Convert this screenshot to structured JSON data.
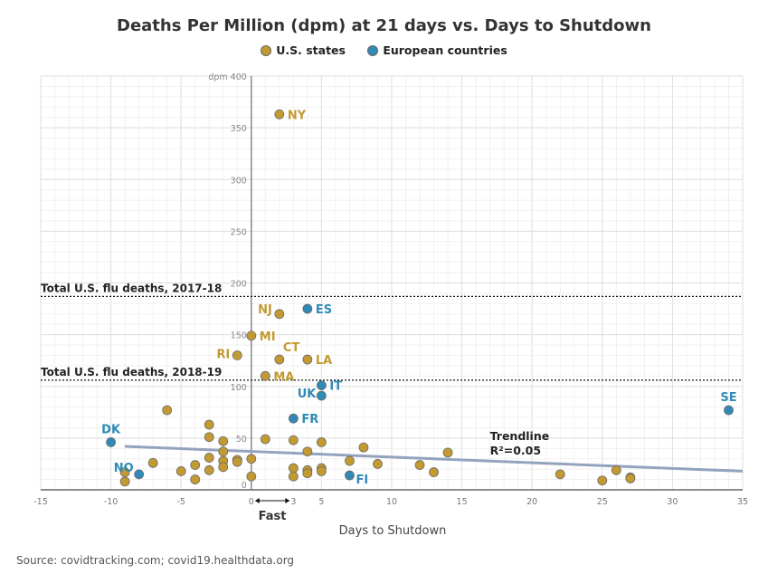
{
  "chart_data": {
    "type": "scatter",
    "title": "Deaths Per Million (dpm) at 21 days vs. Days to Shutdown",
    "xlabel": "Days to Shutdown",
    "ylabel": "dpm",
    "xlim": [
      -15,
      35
    ],
    "ylim": [
      0,
      400
    ],
    "xticks": [
      "-15",
      "-10",
      "-5",
      "0",
      "3",
      "5",
      "10",
      "15",
      "20",
      "25",
      "30",
      "35"
    ],
    "yticks": [
      "0",
      "50",
      "100",
      "150",
      "200",
      "250",
      "300",
      "350",
      "dpm 400"
    ],
    "grid": true,
    "legend_position": "top-center",
    "fast_label": "Fast",
    "colors": {
      "us": "#c39a32",
      "europe": "#2f8ab5",
      "trend": "#94a3bd"
    },
    "series": [
      {
        "name": "U.S. states",
        "points": [
          {
            "x": 2,
            "y": 363,
            "label": "NY"
          },
          {
            "x": 2,
            "y": 170,
            "label": "NJ"
          },
          {
            "x": 0,
            "y": 149,
            "label": "MI"
          },
          {
            "x": -1,
            "y": 130,
            "label": "RI"
          },
          {
            "x": 2,
            "y": 126,
            "label": "CT"
          },
          {
            "x": 4,
            "y": 126,
            "label": "LA"
          },
          {
            "x": 1,
            "y": 110,
            "label": "MA"
          },
          {
            "x": -6,
            "y": 77
          },
          {
            "x": -3,
            "y": 63
          },
          {
            "x": -3,
            "y": 51
          },
          {
            "x": -2,
            "y": 47
          },
          {
            "x": 1,
            "y": 49
          },
          {
            "x": 3,
            "y": 48
          },
          {
            "x": 5,
            "y": 46
          },
          {
            "x": 8,
            "y": 41
          },
          {
            "x": 14,
            "y": 36
          },
          {
            "x": 4,
            "y": 37
          },
          {
            "x": -2,
            "y": 37
          },
          {
            "x": -3,
            "y": 31
          },
          {
            "x": -2,
            "y": 28
          },
          {
            "x": -1,
            "y": 29
          },
          {
            "x": 0,
            "y": 30
          },
          {
            "x": -2,
            "y": 22
          },
          {
            "x": -1,
            "y": 27
          },
          {
            "x": -7,
            "y": 26
          },
          {
            "x": 7,
            "y": 28
          },
          {
            "x": 9,
            "y": 25
          },
          {
            "x": 12,
            "y": 24
          },
          {
            "x": 13,
            "y": 17
          },
          {
            "x": 22,
            "y": 15
          },
          {
            "x": 25,
            "y": 9
          },
          {
            "x": 26,
            "y": 19
          },
          {
            "x": 27,
            "y": 12
          },
          {
            "x": 27,
            "y": 11
          },
          {
            "x": -9,
            "y": 17
          },
          {
            "x": -9,
            "y": 8
          },
          {
            "x": -5,
            "y": 18
          },
          {
            "x": -4,
            "y": 24
          },
          {
            "x": -4,
            "y": 10
          },
          {
            "x": -3,
            "y": 19
          },
          {
            "x": 0,
            "y": 13
          },
          {
            "x": 3,
            "y": 21
          },
          {
            "x": 3,
            "y": 13
          },
          {
            "x": 4,
            "y": 19
          },
          {
            "x": 4,
            "y": 16
          },
          {
            "x": 5,
            "y": 21
          },
          {
            "x": 5,
            "y": 18
          }
        ]
      },
      {
        "name": "European countries",
        "points": [
          {
            "x": 4,
            "y": 175,
            "label": "ES"
          },
          {
            "x": 5,
            "y": 101,
            "label": "IT"
          },
          {
            "x": 5,
            "y": 91,
            "label": "UK"
          },
          {
            "x": 3,
            "y": 69,
            "label": "FR"
          },
          {
            "x": -10,
            "y": 46,
            "label": "DK"
          },
          {
            "x": -8,
            "y": 15,
            "label": "NO"
          },
          {
            "x": 7,
            "y": 14,
            "label": "FI"
          },
          {
            "x": 34,
            "y": 77,
            "label": "SE"
          }
        ]
      }
    ],
    "trendline": {
      "label": "Trendline",
      "r2": "R²=0.05",
      "x": [
        -9,
        35
      ],
      "y": [
        42,
        18
      ]
    },
    "reference_lines": [
      {
        "y": 187,
        "label": "Total U.S. flu deaths, 2017-18"
      },
      {
        "y": 106,
        "label": "Total U.S. flu deaths, 2018-19"
      }
    ]
  },
  "source": "Source: covidtracking.com; covid19.healthdata.org"
}
